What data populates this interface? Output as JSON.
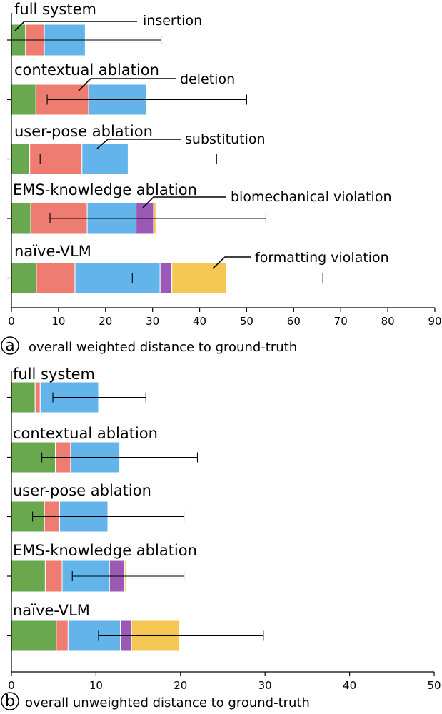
{
  "chart_data": [
    {
      "type": "bar",
      "orientation": "horizontal",
      "stacked": true,
      "panel": "a",
      "xlabel": "overall weighted distance to ground-truth",
      "xlim": [
        0,
        90
      ],
      "xticks": [
        0,
        10,
        20,
        30,
        40,
        50,
        60,
        70,
        80,
        90
      ],
      "categories": [
        "full system",
        "contextual ablation",
        "user-pose ablation",
        "EMS-knowledge ablation",
        "naïve-VLM"
      ],
      "series": [
        {
          "color": "#6aa84f",
          "values": [
            3.0,
            5.2,
            3.9,
            4.1,
            5.3
          ]
        },
        {
          "color": "#ef7c70",
          "values": [
            4.0,
            11.2,
            11.1,
            12.0,
            8.2
          ]
        },
        {
          "color": "#62b4ea",
          "values": [
            8.7,
            12.2,
            9.8,
            10.4,
            18.1
          ]
        },
        {
          "color": "#9b59b6",
          "values": [
            0,
            0,
            0,
            3.7,
            2.5
          ]
        },
        {
          "color": "#f4c653",
          "values": [
            0,
            0,
            0,
            0.5,
            11.6
          ]
        }
      ],
      "error_bars": [
        [
          0,
          31.8
        ],
        [
          7.6,
          50.0
        ],
        [
          6.1,
          43.6
        ],
        [
          8.2,
          54.1
        ],
        [
          25.7,
          66.2
        ]
      ],
      "annotations": [
        "insertion",
        "deletion",
        "substitution",
        "biomechanical violation",
        "formatting violation"
      ]
    },
    {
      "type": "bar",
      "orientation": "horizontal",
      "stacked": true,
      "panel": "b",
      "xlabel": "overall unweighted distance to ground-truth",
      "xlim": [
        0,
        50
      ],
      "xticks": [
        0,
        10,
        20,
        30,
        40,
        50
      ],
      "categories": [
        "full system",
        "contextual ablation",
        "user-pose ablation",
        "EMS-knowledge ablation",
        "naïve-VLM"
      ],
      "series": [
        {
          "color": "#6aa84f",
          "values": [
            2.8,
            5.2,
            3.9,
            4.0,
            5.3
          ]
        },
        {
          "color": "#ef7c70",
          "values": [
            0.6,
            1.8,
            1.8,
            2.0,
            1.4
          ]
        },
        {
          "color": "#62b4ea",
          "values": [
            6.9,
            5.8,
            5.7,
            5.6,
            6.2
          ]
        },
        {
          "color": "#9b59b6",
          "values": [
            0,
            0,
            0,
            1.8,
            1.3
          ]
        },
        {
          "color": "#f4c653",
          "values": [
            0,
            0,
            0,
            0.2,
            5.7
          ]
        }
      ],
      "error_bars": [
        [
          4.9,
          15.9
        ],
        [
          3.6,
          22.0
        ],
        [
          2.5,
          20.4
        ],
        [
          7.2,
          20.4
        ],
        [
          10.3,
          29.8
        ]
      ]
    }
  ]
}
